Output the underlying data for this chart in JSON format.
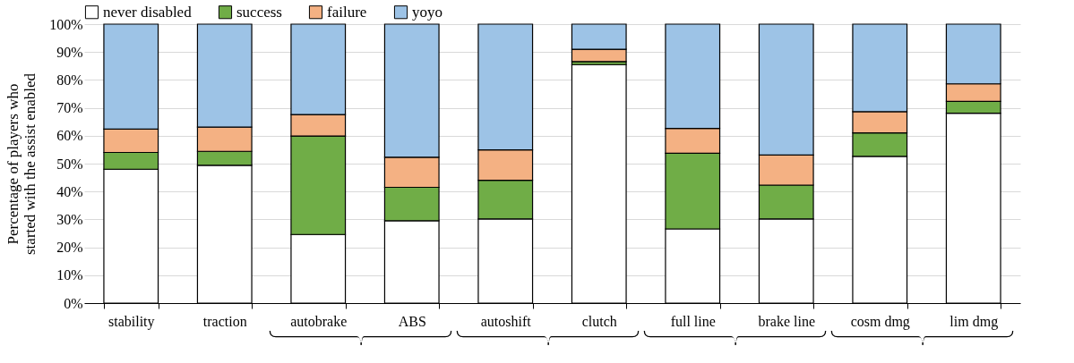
{
  "chart_data": {
    "type": "bar",
    "stacked": true,
    "ylabel": "Percentage of players who\nstarted with the assist enabled",
    "categories": [
      "stability",
      "traction",
      "autobrake",
      "ABS",
      "autoshift",
      "clutch",
      "full line",
      "brake line",
      "cosm dmg",
      "lim dmg"
    ],
    "series": [
      {
        "name": "never disabled",
        "color": "#ffffff",
        "values": [
          48.0,
          49.4,
          24.6,
          29.5,
          30.2,
          85.5,
          26.6,
          30.2,
          52.6,
          68.1
        ]
      },
      {
        "name": "success",
        "color": "#70ad47",
        "values": [
          6.0,
          5.0,
          35.3,
          12.0,
          13.8,
          1.1,
          27.1,
          12.1,
          8.4,
          4.2
        ]
      },
      {
        "name": "failure",
        "color": "#f4b183",
        "values": [
          8.4,
          8.7,
          7.7,
          10.8,
          10.9,
          4.4,
          8.9,
          10.8,
          7.6,
          6.3
        ]
      },
      {
        "name": "yoyo",
        "color": "#9dc3e6",
        "values": [
          37.6,
          36.9,
          32.4,
          47.7,
          45.1,
          9.0,
          37.4,
          46.9,
          31.4,
          21.4
        ]
      }
    ],
    "ylim": [
      0,
      100
    ],
    "yticks": [
      {
        "value": 0,
        "label": "0%"
      },
      {
        "value": 10,
        "label": "10%"
      },
      {
        "value": 20,
        "label": "20%"
      },
      {
        "value": 30,
        "label": "30%"
      },
      {
        "value": 40,
        "label": "40%"
      },
      {
        "value": 50,
        "label": "50%"
      },
      {
        "value": 60,
        "label": "60%"
      },
      {
        "value": 70,
        "label": "70%"
      },
      {
        "value": 80,
        "label": "80%"
      },
      {
        "value": 90,
        "label": "90%"
      },
      {
        "value": 100,
        "label": "100%"
      }
    ],
    "grid": "y",
    "legend": "top"
  }
}
